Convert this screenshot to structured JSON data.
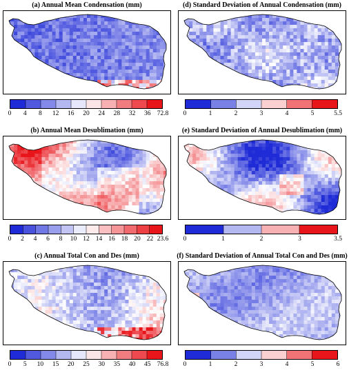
{
  "panels": [
    {
      "id": "a",
      "title": "(a) Annual Mean Condensation (mm)",
      "pattern": "cond",
      "ticks": [
        "0",
        "4",
        "8",
        "12",
        "16",
        "20",
        "24",
        "28",
        "32",
        "36",
        "72.8"
      ]
    },
    {
      "id": "d",
      "title": "(d) Standard Deviation of Annual Condensation (mm)",
      "pattern": "sdcond",
      "ticks": [
        "0",
        "1",
        "2",
        "3",
        "4",
        "5",
        "5.5"
      ]
    },
    {
      "id": "b",
      "title": "(b) Annual Mean Desublimation (mm)",
      "pattern": "desub",
      "ticks": [
        "0",
        "2",
        "4",
        "6",
        "8",
        "10",
        "12",
        "14",
        "16",
        "18",
        "20",
        "22",
        "23.6"
      ]
    },
    {
      "id": "e",
      "title": "(e) Standard Deviation of Annual Desublimation (mm)",
      "pattern": "sddesub",
      "ticks": [
        "0",
        "1",
        "2",
        "3",
        "3.5"
      ]
    },
    {
      "id": "c",
      "title": "(c) Annual Total Con and Des (mm)",
      "pattern": "total",
      "ticks": [
        "0",
        "5",
        "10",
        "15",
        "20",
        "25",
        "30",
        "35",
        "40",
        "45",
        "76.8"
      ]
    },
    {
      "id": "f",
      "title": "(f) Standard Deviation of Annual Total Con and Des (mm)",
      "pattern": "sdtotal",
      "ticks": [
        "0",
        "1",
        "2",
        "3",
        "4",
        "5",
        "6"
      ]
    }
  ],
  "colors": {
    "low": "#1f2bd6",
    "mid": "#ffffff",
    "high": "#e8151b",
    "border": "#000000"
  }
}
